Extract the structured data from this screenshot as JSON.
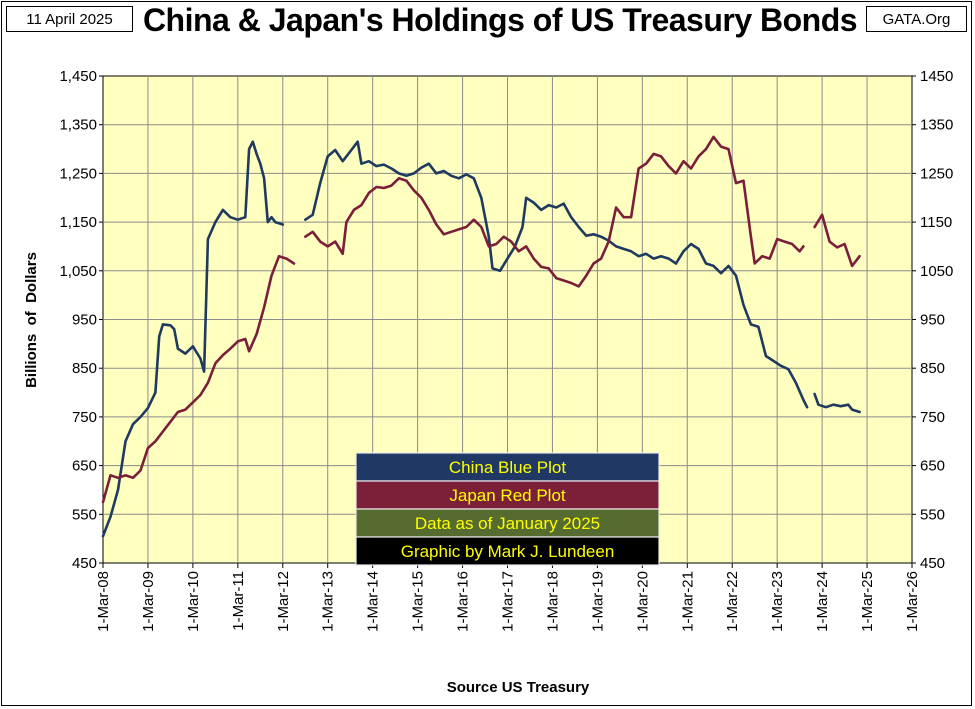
{
  "header": {
    "date": "11 April 2025",
    "title": "China & Japan's Holdings of US Treasury Bonds",
    "source_site": "GATA.Org"
  },
  "chart_data": {
    "type": "line",
    "ylabel": "Billions  of  Dollars",
    "xlabel": "Source US Treasury",
    "ylim": [
      450,
      1450
    ],
    "y_ticks_left": [
      "450",
      "550",
      "650",
      "750",
      "850",
      "950",
      "1,050",
      "1,150",
      "1,250",
      "1,350",
      "1,450"
    ],
    "y_ticks_right": [
      "450",
      "550",
      "650",
      "750",
      "850",
      "950",
      "1050",
      "1150",
      "1250",
      "1350",
      "1450"
    ],
    "x_ticks": [
      "1-Mar-08",
      "1-Mar-09",
      "1-Mar-10",
      "1-Mar-11",
      "1-Mar-12",
      "1-Mar-13",
      "1-Mar-14",
      "1-Mar-15",
      "1-Mar-16",
      "1-Mar-17",
      "1-Mar-18",
      "1-Mar-19",
      "1-Mar-20",
      "1-Mar-21",
      "1-Mar-22",
      "1-Mar-23",
      "1-Mar-24",
      "1-Mar-25",
      "1-Mar-26"
    ],
    "grid": true,
    "legend": [
      {
        "label": "China Blue Plot",
        "color": "#1f3864"
      },
      {
        "label": "Japan Red Plot",
        "color": "#7b2038"
      },
      {
        "label": "Data as of January 2025",
        "color": "#556b2f"
      },
      {
        "label": "Graphic by Mark J. Lundeen",
        "color": "#000000"
      }
    ],
    "series": [
      {
        "name": "China",
        "color": "#1f3a5f",
        "segments": [
          [
            [
              "2008-03-01",
              505
            ],
            [
              "2008-05-01",
              545
            ],
            [
              "2008-07-01",
              600
            ],
            [
              "2008-09-01",
              700
            ],
            [
              "2008-11-01",
              735
            ],
            [
              "2009-01-01",
              750
            ],
            [
              "2009-03-01",
              768
            ],
            [
              "2009-05-01",
              800
            ],
            [
              "2009-06-01",
              915
            ],
            [
              "2009-07-01",
              940
            ],
            [
              "2009-09-01",
              938
            ],
            [
              "2009-10-01",
              930
            ],
            [
              "2009-11-01",
              890
            ],
            [
              "2010-01-01",
              880
            ],
            [
              "2010-03-01",
              895
            ],
            [
              "2010-05-01",
              870
            ],
            [
              "2010-06-01",
              843
            ],
            [
              "2010-07-01",
              1115
            ],
            [
              "2010-09-01",
              1150
            ],
            [
              "2010-11-01",
              1175
            ],
            [
              "2011-01-01",
              1160
            ],
            [
              "2011-03-01",
              1155
            ],
            [
              "2011-05-01",
              1160
            ],
            [
              "2011-06-01",
              1300
            ],
            [
              "2011-07-01",
              1315
            ],
            [
              "2011-08-01",
              1290
            ],
            [
              "2011-09-01",
              1270
            ],
            [
              "2011-10-01",
              1240
            ],
            [
              "2011-11-01",
              1150
            ],
            [
              "2011-12-01",
              1160
            ],
            [
              "2012-01-01",
              1150
            ],
            [
              "2012-03-01",
              1145
            ]
          ],
          [
            [
              "2012-09-01",
              1155
            ],
            [
              "2012-11-01",
              1165
            ],
            [
              "2013-01-01",
              1230
            ],
            [
              "2013-03-01",
              1285
            ],
            [
              "2013-05-01",
              1298
            ],
            [
              "2013-07-01",
              1275
            ],
            [
              "2013-09-01",
              1295
            ],
            [
              "2013-11-01",
              1315
            ],
            [
              "2013-12-01",
              1270
            ],
            [
              "2014-02-01",
              1275
            ],
            [
              "2014-04-01",
              1265
            ],
            [
              "2014-06-01",
              1268
            ],
            [
              "2014-08-01",
              1260
            ],
            [
              "2014-10-01",
              1250
            ],
            [
              "2014-12-01",
              1245
            ],
            [
              "2015-02-01",
              1250
            ],
            [
              "2015-04-01",
              1262
            ],
            [
              "2015-06-01",
              1270
            ],
            [
              "2015-08-01",
              1250
            ],
            [
              "2015-10-01",
              1255
            ],
            [
              "2015-12-01",
              1245
            ],
            [
              "2016-02-01",
              1240
            ],
            [
              "2016-04-01",
              1248
            ],
            [
              "2016-06-01",
              1240
            ],
            [
              "2016-08-01",
              1200
            ],
            [
              "2016-10-01",
              1120
            ],
            [
              "2016-11-01",
              1055
            ],
            [
              "2017-01-01",
              1050
            ],
            [
              "2017-03-01",
              1075
            ],
            [
              "2017-05-01",
              1100
            ],
            [
              "2017-07-01",
              1140
            ],
            [
              "2017-08-01",
              1200
            ],
            [
              "2017-10-01",
              1190
            ],
            [
              "2017-12-01",
              1175
            ],
            [
              "2018-02-01",
              1185
            ],
            [
              "2018-04-01",
              1180
            ],
            [
              "2018-06-01",
              1188
            ],
            [
              "2018-08-01",
              1160
            ],
            [
              "2018-10-01",
              1140
            ],
            [
              "2018-12-01",
              1122
            ],
            [
              "2019-02-01",
              1125
            ],
            [
              "2019-04-01",
              1120
            ],
            [
              "2019-06-01",
              1112
            ],
            [
              "2019-08-01",
              1100
            ],
            [
              "2019-10-01",
              1095
            ],
            [
              "2019-12-01",
              1090
            ],
            [
              "2020-02-01",
              1080
            ],
            [
              "2020-04-01",
              1085
            ],
            [
              "2020-06-01",
              1075
            ],
            [
              "2020-08-01",
              1080
            ],
            [
              "2020-10-01",
              1075
            ],
            [
              "2020-12-01",
              1065
            ],
            [
              "2021-02-01",
              1090
            ],
            [
              "2021-04-01",
              1105
            ],
            [
              "2021-06-01",
              1095
            ],
            [
              "2021-08-01",
              1065
            ],
            [
              "2021-10-01",
              1060
            ],
            [
              "2021-12-01",
              1045
            ],
            [
              "2022-02-01",
              1060
            ],
            [
              "2022-04-01",
              1040
            ],
            [
              "2022-06-01",
              980
            ],
            [
              "2022-08-01",
              940
            ],
            [
              "2022-10-01",
              935
            ],
            [
              "2022-12-01",
              875
            ],
            [
              "2023-02-01",
              865
            ],
            [
              "2023-04-01",
              855
            ],
            [
              "2023-06-01",
              848
            ],
            [
              "2023-08-01",
              820
            ],
            [
              "2023-10-01",
              785
            ],
            [
              "2023-11-01",
              770
            ]
          ],
          [
            [
              "2024-01-01",
              797
            ],
            [
              "2024-02-01",
              775
            ],
            [
              "2024-04-01",
              770
            ],
            [
              "2024-06-01",
              775
            ],
            [
              "2024-08-01",
              772
            ],
            [
              "2024-10-01",
              775
            ],
            [
              "2024-11-01",
              765
            ],
            [
              "2025-01-01",
              760
            ]
          ]
        ]
      },
      {
        "name": "Japan",
        "color": "#7a1e3a",
        "segments": [
          [
            [
              "2008-03-01",
              575
            ],
            [
              "2008-05-01",
              630
            ],
            [
              "2008-07-01",
              625
            ],
            [
              "2008-09-01",
              630
            ],
            [
              "2008-11-01",
              625
            ],
            [
              "2009-01-01",
              640
            ],
            [
              "2009-03-01",
              686
            ],
            [
              "2009-05-01",
              700
            ],
            [
              "2009-07-01",
              720
            ],
            [
              "2009-09-01",
              740
            ],
            [
              "2009-11-01",
              760
            ],
            [
              "2010-01-01",
              765
            ],
            [
              "2010-03-01",
              780
            ],
            [
              "2010-05-01",
              795
            ],
            [
              "2010-07-01",
              820
            ],
            [
              "2010-09-01",
              860
            ],
            [
              "2010-11-01",
              877
            ],
            [
              "2011-01-01",
              890
            ],
            [
              "2011-03-01",
              905
            ],
            [
              "2011-05-01",
              910
            ],
            [
              "2011-06-01",
              885
            ],
            [
              "2011-08-01",
              920
            ],
            [
              "2011-10-01",
              975
            ],
            [
              "2011-12-01",
              1040
            ],
            [
              "2012-02-01",
              1080
            ],
            [
              "2012-04-01",
              1075
            ],
            [
              "2012-06-01",
              1065
            ]
          ],
          [
            [
              "2012-09-01",
              1120
            ],
            [
              "2012-11-01",
              1130
            ],
            [
              "2013-01-01",
              1110
            ],
            [
              "2013-03-01",
              1100
            ],
            [
              "2013-05-01",
              1110
            ],
            [
              "2013-07-01",
              1085
            ],
            [
              "2013-08-01",
              1150
            ],
            [
              "2013-10-01",
              1175
            ],
            [
              "2013-12-01",
              1185
            ],
            [
              "2014-02-01",
              1210
            ],
            [
              "2014-04-01",
              1222
            ],
            [
              "2014-06-01",
              1220
            ],
            [
              "2014-08-01",
              1225
            ],
            [
              "2014-10-01",
              1240
            ],
            [
              "2014-12-01",
              1235
            ],
            [
              "2015-02-01",
              1215
            ],
            [
              "2015-04-01",
              1200
            ],
            [
              "2015-06-01",
              1175
            ],
            [
              "2015-08-01",
              1145
            ],
            [
              "2015-10-01",
              1125
            ],
            [
              "2015-12-01",
              1130
            ],
            [
              "2016-02-01",
              1135
            ],
            [
              "2016-04-01",
              1140
            ],
            [
              "2016-06-01",
              1155
            ],
            [
              "2016-08-01",
              1140
            ],
            [
              "2016-10-01",
              1100
            ],
            [
              "2016-12-01",
              1105
            ],
            [
              "2017-02-01",
              1120
            ],
            [
              "2017-04-01",
              1110
            ],
            [
              "2017-06-01",
              1090
            ],
            [
              "2017-08-01",
              1100
            ],
            [
              "2017-10-01",
              1075
            ],
            [
              "2017-12-01",
              1058
            ],
            [
              "2018-02-01",
              1055
            ],
            [
              "2018-04-01",
              1035
            ],
            [
              "2018-06-01",
              1030
            ],
            [
              "2018-08-01",
              1025
            ],
            [
              "2018-10-01",
              1018
            ],
            [
              "2018-12-01",
              1040
            ],
            [
              "2019-02-01",
              1065
            ],
            [
              "2019-04-01",
              1075
            ],
            [
              "2019-06-01",
              1110
            ],
            [
              "2019-08-01",
              1180
            ],
            [
              "2019-10-01",
              1160
            ],
            [
              "2019-12-01",
              1160
            ],
            [
              "2020-02-01",
              1260
            ],
            [
              "2020-04-01",
              1270
            ],
            [
              "2020-06-01",
              1290
            ],
            [
              "2020-08-01",
              1285
            ],
            [
              "2020-10-01",
              1265
            ],
            [
              "2020-12-01",
              1250
            ],
            [
              "2021-02-01",
              1275
            ],
            [
              "2021-04-01",
              1260
            ],
            [
              "2021-06-01",
              1285
            ],
            [
              "2021-08-01",
              1300
            ],
            [
              "2021-10-01",
              1325
            ],
            [
              "2021-12-01",
              1305
            ],
            [
              "2022-02-01",
              1300
            ],
            [
              "2022-04-01",
              1230
            ],
            [
              "2022-06-01",
              1235
            ],
            [
              "2022-08-01",
              1120
            ],
            [
              "2022-09-01",
              1065
            ],
            [
              "2022-11-01",
              1080
            ],
            [
              "2023-01-01",
              1075
            ],
            [
              "2023-03-01",
              1115
            ],
            [
              "2023-05-01",
              1110
            ],
            [
              "2023-07-01",
              1105
            ],
            [
              "2023-09-01",
              1090
            ],
            [
              "2023-10-01",
              1100
            ]
          ],
          [
            [
              "2024-01-01",
              1140
            ],
            [
              "2024-03-01",
              1165
            ],
            [
              "2024-05-01",
              1110
            ],
            [
              "2024-07-01",
              1098
            ],
            [
              "2024-09-01",
              1105
            ],
            [
              "2024-11-01",
              1060
            ],
            [
              "2025-01-01",
              1080
            ]
          ]
        ]
      }
    ]
  }
}
